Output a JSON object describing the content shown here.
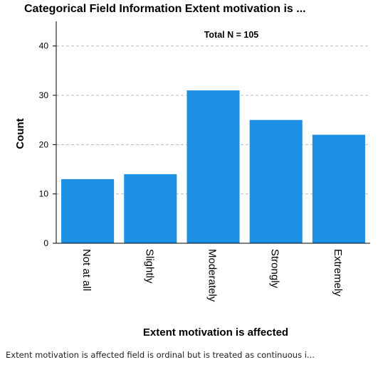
{
  "chart_data": {
    "type": "bar",
    "title": "Categorical Field Information Extent motivation is ...",
    "xlabel": "Extent motivation is affected",
    "ylabel": "Count",
    "categories": [
      "Not at all",
      "Slightly",
      "Moderately",
      "Strongly",
      "Extremely"
    ],
    "values": [
      13,
      14,
      31,
      25,
      22
    ],
    "ylim": [
      0,
      45
    ],
    "yticks": [
      "0",
      "10",
      "20",
      "30",
      "40"
    ],
    "grid": true,
    "annotation": "Total N =  105",
    "bar_color": "#1e90e3"
  },
  "footnote": "Extent motivation is affected field is ordinal but is treated as continuous i..."
}
